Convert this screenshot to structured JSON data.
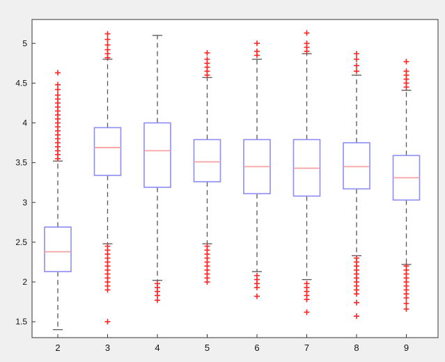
{
  "chart_data": {
    "type": "boxplot",
    "title": "",
    "xlabel": "",
    "ylabel": "",
    "categories": [
      "2",
      "3",
      "4",
      "5",
      "6",
      "7",
      "8",
      "9"
    ],
    "ylim": [
      1.3,
      5.3
    ],
    "y_ticks": [
      1.5,
      2,
      2.5,
      3,
      3.5,
      4,
      4.5,
      5
    ],
    "y_tick_labels": [
      "1.5",
      "2",
      "2.5",
      "3",
      "3.5",
      "4",
      "4.5",
      "5"
    ],
    "grid": false,
    "legend": "none",
    "boxes": [
      {
        "category": "2",
        "whisker_low": 1.4,
        "q1": 2.13,
        "median": 2.38,
        "q3": 2.69,
        "whisker_high": 3.52,
        "outliers_high": [
          3.55,
          3.6,
          3.65,
          3.7,
          3.75,
          3.8,
          3.85,
          3.9,
          3.95,
          4.0,
          4.05,
          4.1,
          4.15,
          4.2,
          4.25,
          4.3,
          4.35,
          4.42,
          4.48,
          4.63
        ],
        "outliers_low": []
      },
      {
        "category": "3",
        "whisker_low": 2.48,
        "q1": 3.34,
        "median": 3.69,
        "q3": 3.94,
        "whisker_high": 4.8,
        "outliers_high": [
          4.82,
          4.87,
          4.92,
          4.98,
          5.05,
          5.12
        ],
        "outliers_low": [
          2.45,
          2.4,
          2.35,
          2.3,
          2.25,
          2.2,
          2.15,
          2.1,
          2.05,
          2.0,
          1.95,
          1.9,
          1.5
        ]
      },
      {
        "category": "4",
        "whisker_low": 2.02,
        "q1": 3.19,
        "median": 3.65,
        "q3": 4.0,
        "whisker_high": 5.1,
        "outliers_high": [],
        "outliers_low": [
          1.98,
          1.93,
          1.88,
          1.83,
          1.77
        ]
      },
      {
        "category": "5",
        "whisker_low": 2.48,
        "q1": 3.26,
        "median": 3.51,
        "q3": 3.79,
        "whisker_high": 4.57,
        "outliers_high": [
          4.6,
          4.65,
          4.7,
          4.75,
          4.8,
          4.88
        ],
        "outliers_low": [
          2.45,
          2.4,
          2.35,
          2.3,
          2.25,
          2.2,
          2.15,
          2.1,
          2.05,
          2.0
        ]
      },
      {
        "category": "6",
        "whisker_low": 2.13,
        "q1": 3.11,
        "median": 3.45,
        "q3": 3.79,
        "whisker_high": 4.8,
        "outliers_high": [
          4.85,
          4.9,
          5.0
        ],
        "outliers_low": [
          2.08,
          2.03,
          1.98,
          1.93,
          1.82
        ]
      },
      {
        "category": "7",
        "whisker_low": 2.03,
        "q1": 3.08,
        "median": 3.43,
        "q3": 3.79,
        "whisker_high": 4.87,
        "outliers_high": [
          4.9,
          4.95,
          5.0,
          5.13
        ],
        "outliers_low": [
          1.98,
          1.93,
          1.88,
          1.83,
          1.78,
          1.62
        ]
      },
      {
        "category": "8",
        "whisker_low": 2.33,
        "q1": 3.17,
        "median": 3.45,
        "q3": 3.75,
        "whisker_high": 4.6,
        "outliers_high": [
          4.65,
          4.72,
          4.8,
          4.87
        ],
        "outliers_low": [
          2.3,
          2.25,
          2.2,
          2.15,
          2.1,
          2.05,
          2.0,
          1.95,
          1.9,
          1.85,
          1.74,
          1.57
        ]
      },
      {
        "category": "9",
        "whisker_low": 2.22,
        "q1": 3.03,
        "median": 3.31,
        "q3": 3.59,
        "whisker_high": 4.41,
        "outliers_high": [
          4.45,
          4.5,
          4.55,
          4.6,
          4.65,
          4.77
        ],
        "outliers_low": [
          2.2,
          2.15,
          2.1,
          2.05,
          2.0,
          1.95,
          1.9,
          1.85,
          1.8,
          1.73,
          1.66
        ]
      }
    ],
    "colors": {
      "box": "#8c8cf5",
      "median": "#f7a0a0",
      "whisker": "#555555",
      "outlier": "#ff2020",
      "axes": "#333333",
      "plot_bg": "#ffffff",
      "figure_bg": "#f0f0f0"
    }
  }
}
